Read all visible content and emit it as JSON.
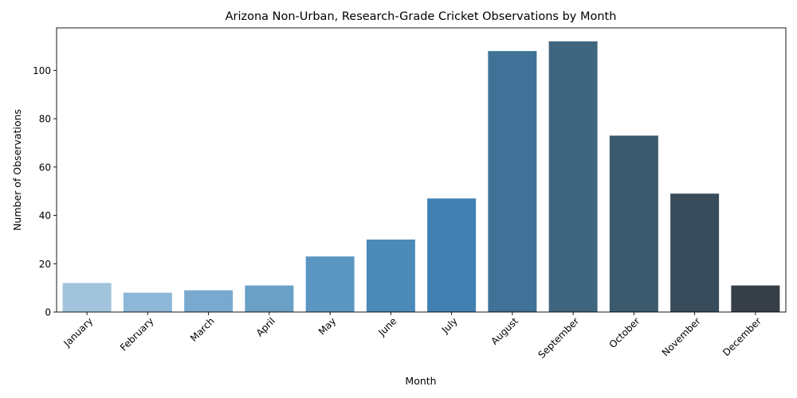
{
  "chart_data": {
    "type": "bar",
    "title": "Arizona Non-Urban, Research-Grade Cricket Observations by Month",
    "xlabel": "Month",
    "ylabel": "Number of Observations",
    "categories": [
      "January",
      "February",
      "March",
      "April",
      "May",
      "June",
      "July",
      "August",
      "September",
      "October",
      "November",
      "December"
    ],
    "values": [
      12,
      8,
      9,
      11,
      23,
      30,
      47,
      108,
      112,
      73,
      49,
      11
    ],
    "colors": [
      "#a1c4dc",
      "#8db7d6",
      "#79a9ce",
      "#6a9fc6",
      "#5b96c2",
      "#4c8ab9",
      "#4180b2",
      "#3f7296",
      "#40667f",
      "#3b5a6e",
      "#384c5c",
      "#363e47"
    ],
    "ylim": [
      0,
      117.6
    ],
    "yticks": [
      0,
      20,
      40,
      60,
      80,
      100
    ],
    "grid": false,
    "x_tick_rotation": 45
  }
}
